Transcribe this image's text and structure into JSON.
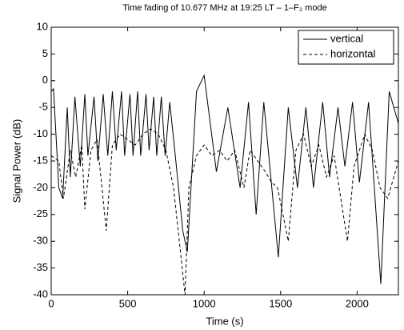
{
  "chart_data": {
    "type": "line",
    "title": "Time fading of 10.677 MHz at 19:25 LT – 1–F₂ mode",
    "xlabel": "Time (s)",
    "ylabel": "Signal Power (dB)",
    "xlim": [
      0,
      2270
    ],
    "ylim": [
      -40,
      10
    ],
    "xticks": [
      0,
      500,
      1000,
      1500,
      2000
    ],
    "yticks": [
      -40,
      -35,
      -30,
      -25,
      -20,
      -15,
      -10,
      -5,
      0,
      5,
      10
    ],
    "legend": "upper right",
    "series": [
      {
        "name": "vertical",
        "color": "#000000",
        "dash": "solid",
        "x": [
          0,
          15,
          50,
          75,
          105,
          125,
          155,
          190,
          220,
          240,
          280,
          305,
          340,
          370,
          400,
          425,
          460,
          480,
          515,
          535,
          565,
          585,
          620,
          640,
          670,
          690,
          720,
          745,
          775,
          815,
          860,
          890,
          950,
          1000,
          1080,
          1155,
          1235,
          1290,
          1340,
          1390,
          1485,
          1550,
          1610,
          1665,
          1715,
          1775,
          1820,
          1875,
          1920,
          1970,
          2015,
          2075,
          2155,
          2210,
          2270
        ],
        "values": [
          -2,
          -1.5,
          -20,
          -22,
          -5,
          -18,
          -3,
          -16,
          -2.5,
          -14,
          -3,
          -15,
          -2.5,
          -14,
          -2,
          -13,
          -2,
          -14,
          -2.5,
          -14,
          -2,
          -14,
          -2.5,
          -13,
          -3,
          -14,
          -3,
          -14,
          -4,
          -15,
          -28,
          -32,
          -2,
          1,
          -17,
          -5,
          -20,
          -4,
          -25,
          -4,
          -33,
          -5,
          -20,
          -5,
          -20,
          -4,
          -18,
          -5,
          -16,
          -4,
          -19,
          -4,
          -38,
          -2,
          -8
        ]
      },
      {
        "name": "horizontal",
        "color": "#000000",
        "dash": "dashed",
        "x": [
          0,
          50,
          80,
          125,
          160,
          200,
          220,
          260,
          300,
          360,
          400,
          450,
          500,
          550,
          600,
          650,
          700,
          750,
          800,
          875,
          900,
          950,
          1000,
          1050,
          1100,
          1150,
          1200,
          1260,
          1300,
          1350,
          1400,
          1440,
          1480,
          1550,
          1600,
          1650,
          1700,
          1750,
          1800,
          1850,
          1937,
          1980,
          2050,
          2100,
          2150,
          2200,
          2270
        ],
        "values": [
          -14,
          -15,
          -22,
          -13,
          -18,
          -12,
          -24,
          -13,
          -11,
          -28,
          -12,
          -10,
          -11,
          -12,
          -10,
          -9,
          -10,
          -13,
          -20,
          -40,
          -20,
          -14,
          -12,
          -14,
          -13,
          -15,
          -13,
          -20,
          -13,
          -15,
          -17,
          -19,
          -20,
          -30,
          -13,
          -10,
          -16,
          -12,
          -18,
          -14,
          -30,
          -16,
          -10,
          -13,
          -20,
          -22,
          -15
        ]
      }
    ]
  }
}
